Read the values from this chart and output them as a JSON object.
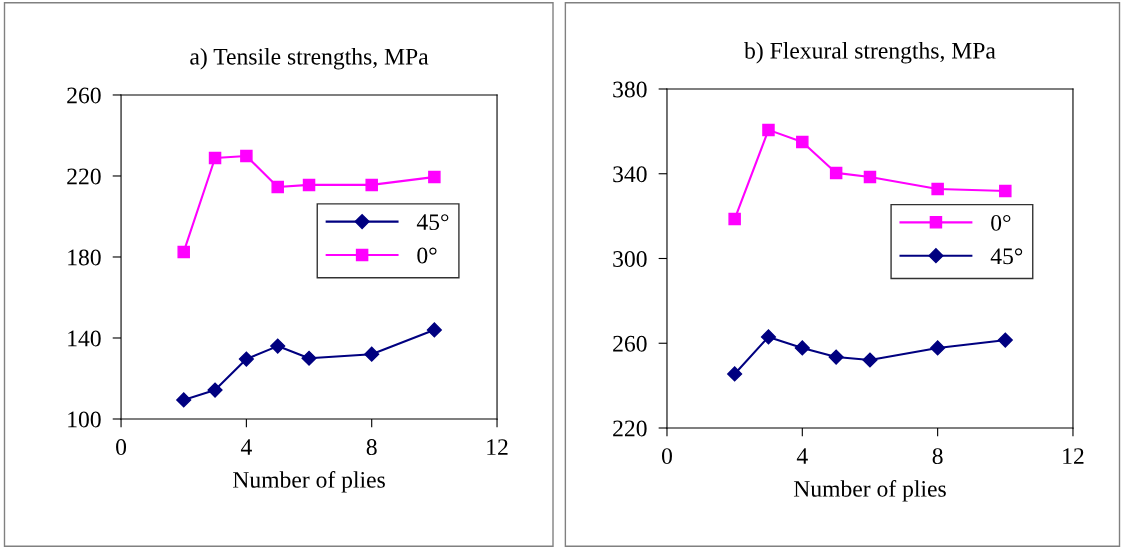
{
  "chart_data": [
    {
      "type": "line",
      "title": "a) Tensile strengths, MPa",
      "xlabel": "Number of plies",
      "x": [
        2,
        3,
        4,
        5,
        6,
        8,
        10
      ],
      "series": [
        {
          "name": "45°",
          "color": "#000080",
          "marker": "diamond",
          "values": [
            109.4,
            114.3,
            129.6,
            136,
            130,
            132,
            144
          ]
        },
        {
          "name": "0°",
          "color": "#ff00ff",
          "marker": "square",
          "values": [
            182.5,
            228.9,
            229.9,
            214.6,
            215.6,
            215.6,
            219.5
          ]
        }
      ],
      "xlim": [
        0,
        12
      ],
      "xticks": [
        0,
        4,
        8,
        12
      ],
      "ylim": [
        100,
        260
      ],
      "yticks": [
        100,
        140,
        180,
        220,
        260
      ],
      "grid": false,
      "legend": "right",
      "line_style": "solid"
    },
    {
      "type": "line",
      "title": "b) Flexural strengths, MPa",
      "xlabel": "Number of plies",
      "x": [
        2,
        3,
        4,
        5,
        6,
        8,
        10
      ],
      "series": [
        {
          "name": "0°",
          "color": "#ff00ff",
          "marker": "square",
          "values": [
            318.6,
            360.7,
            355,
            340.4,
            338.5,
            332.8,
            331.9
          ]
        },
        {
          "name": "45°",
          "color": "#000080",
          "marker": "diamond",
          "values": [
            245.5,
            263,
            257.8,
            253.5,
            252.1,
            257.8,
            261.5
          ]
        }
      ],
      "xlim": [
        0,
        12
      ],
      "xticks": [
        0,
        4,
        8,
        12
      ],
      "ylim": [
        220,
        380
      ],
      "yticks": [
        220,
        260,
        300,
        340,
        380
      ],
      "grid": false,
      "legend": "right",
      "line_style": "solid"
    }
  ]
}
